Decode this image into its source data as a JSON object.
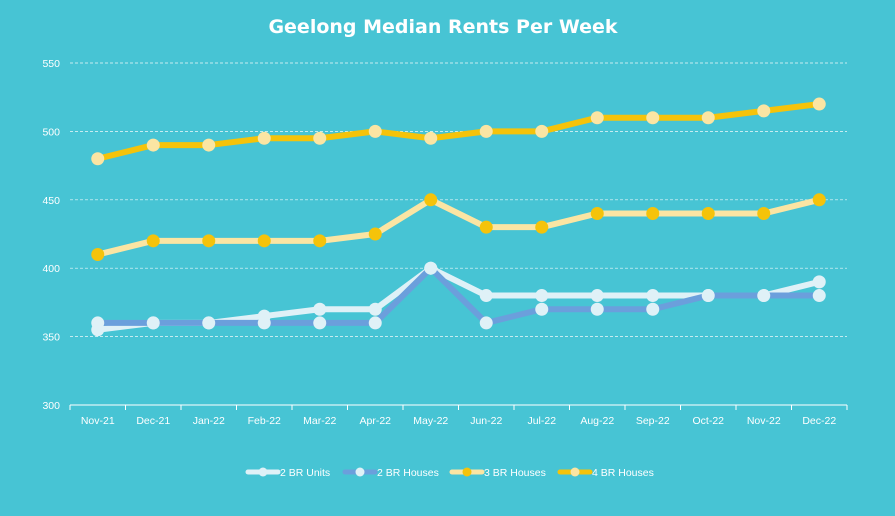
{
  "chart_data": {
    "type": "line",
    "title": "Geelong Median Rents Per Week",
    "xlabel": "",
    "ylabel": "",
    "categories": [
      "Nov-21",
      "Dec-21",
      "Jan-22",
      "Feb-22",
      "Mar-22",
      "Apr-22",
      "May-22",
      "Jun-22",
      "Jul-22",
      "Aug-22",
      "Sep-22",
      "Oct-22",
      "Nov-22",
      "Dec-22"
    ],
    "ylim": [
      300,
      550
    ],
    "yticks": [
      300,
      350,
      400,
      450,
      500,
      550
    ],
    "grid": true,
    "legend_position": "bottom",
    "series": [
      {
        "name": "2 BR Units",
        "color": "#dff1f7",
        "marker_color": "#dff1f7",
        "values": [
          355,
          360,
          360,
          365,
          370,
          370,
          400,
          380,
          380,
          380,
          380,
          380,
          380,
          390
        ]
      },
      {
        "name": "2 BR Houses",
        "color": "#6b9fdc",
        "marker_color": "#dff1f7",
        "values": [
          360,
          360,
          360,
          360,
          360,
          360,
          400,
          360,
          370,
          370,
          370,
          380,
          380,
          380
        ]
      },
      {
        "name": "3 BR Houses",
        "color": "#fbe5a3",
        "marker_color": "#f5c30a",
        "values": [
          410,
          420,
          420,
          420,
          420,
          425,
          450,
          430,
          430,
          440,
          440,
          440,
          440,
          450
        ]
      },
      {
        "name": "4 BR Houses",
        "color": "#f5c30a",
        "marker_color": "#fbe5a3",
        "values": [
          480,
          490,
          490,
          495,
          495,
          500,
          495,
          500,
          500,
          510,
          510,
          510,
          515,
          520
        ]
      }
    ]
  }
}
